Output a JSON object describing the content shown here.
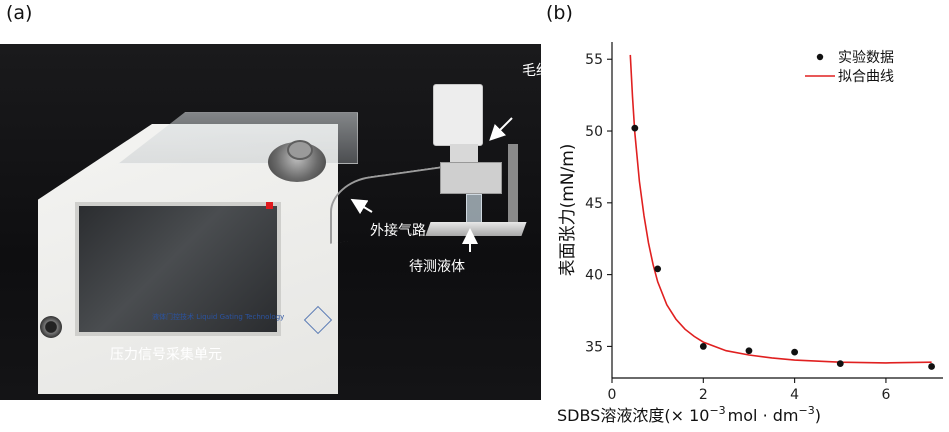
{
  "panels": {
    "a": "(a)",
    "b": "(b)"
  },
  "photo": {
    "labels": {
      "capillary": "毛细管",
      "gas_line": "外接气路",
      "liquid": "待测液体",
      "unit": "压力信号采集单元"
    },
    "brand_text": "液体门控技术 Liquid Gating Technology"
  },
  "chart_data": {
    "type": "scatter",
    "xlabel_prefix": "SDBS溶液浓度(× 10",
    "xlabel_exp": "−3",
    "xlabel_unit": "mol · dm",
    "xlabel_unit_exp": "−3",
    "xlabel_close": ")",
    "ylabel": "表面张力(mN/m)",
    "xlim": [
      0,
      7.25
    ],
    "ylim": [
      32.8,
      56.2
    ],
    "x_ticks": [
      0,
      2,
      4,
      6
    ],
    "y_ticks": [
      35,
      40,
      45,
      50,
      55
    ],
    "series": [
      {
        "name": "实验数据",
        "kind": "points",
        "color": "#111111",
        "x": [
          0.5,
          1.0,
          2.0,
          3.0,
          4.0,
          5.0,
          7.0
        ],
        "y": [
          50.2,
          40.4,
          35.0,
          34.7,
          34.6,
          33.8,
          33.6
        ]
      },
      {
        "name": "拟合曲线",
        "kind": "fit",
        "color": "#e02020",
        "x": [
          0.4,
          0.45,
          0.5,
          0.6,
          0.7,
          0.8,
          0.9,
          1.0,
          1.2,
          1.4,
          1.6,
          1.8,
          2.0,
          2.5,
          3.0,
          3.5,
          4.0,
          5.0,
          6.0,
          7.0
        ],
        "y": [
          55.3,
          52.4,
          49.9,
          46.5,
          44.1,
          42.2,
          40.7,
          39.5,
          37.9,
          36.9,
          36.2,
          35.7,
          35.3,
          34.7,
          34.4,
          34.2,
          34.05,
          33.9,
          33.85,
          33.9
        ]
      }
    ],
    "legend": [
      "实验数据",
      "拟合曲线"
    ],
    "legend_position": "top-right",
    "grid": false
  }
}
